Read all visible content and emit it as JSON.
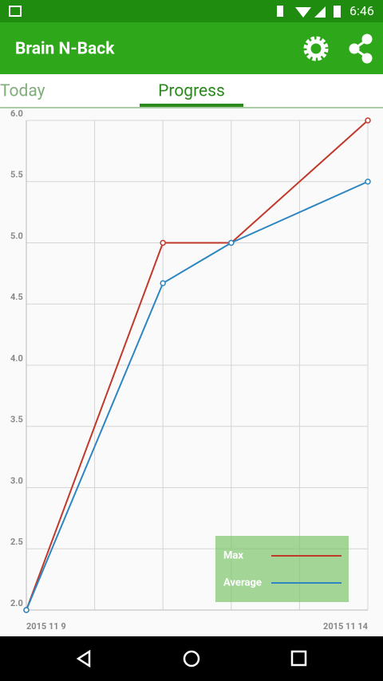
{
  "status_bar": {
    "time": "6:46"
  },
  "app_bar": {
    "title": "Brain N-Back"
  },
  "tabs": [
    "Today",
    "Progress"
  ],
  "chart_data": {
    "type": "line",
    "x": [
      9,
      11,
      12,
      14
    ],
    "xlim": [
      9,
      14
    ],
    "xticks": [
      {
        "value": 9,
        "label": "2015 11 9"
      },
      {
        "value": 10,
        "label": null
      },
      {
        "value": 11,
        "label": null
      },
      {
        "value": 12,
        "label": null
      },
      {
        "value": 13,
        "label": null
      },
      {
        "value": 14,
        "label": "2015 11 14"
      }
    ],
    "ylim": [
      2,
      6
    ],
    "yticks": [
      {
        "value": 2,
        "label": "2.0"
      },
      2.5,
      {
        "value": 3,
        "label": "3.0"
      },
      3.5,
      {
        "value": 4,
        "label": "4.0"
      },
      4.5,
      {
        "value": 5,
        "label": "5.0"
      },
      5.5,
      {
        "value": 6,
        "label": "6.0"
      }
    ],
    "grid": true,
    "legend": "lower right",
    "series": [
      {
        "name": "Max",
        "color": "#c0392b",
        "values": [
          2.0,
          5.0,
          5.0,
          6.0
        ]
      },
      {
        "name": "Average",
        "color": "#2e86c1",
        "values": [
          2.0,
          4.67,
          5.0,
          5.5
        ]
      }
    ]
  }
}
